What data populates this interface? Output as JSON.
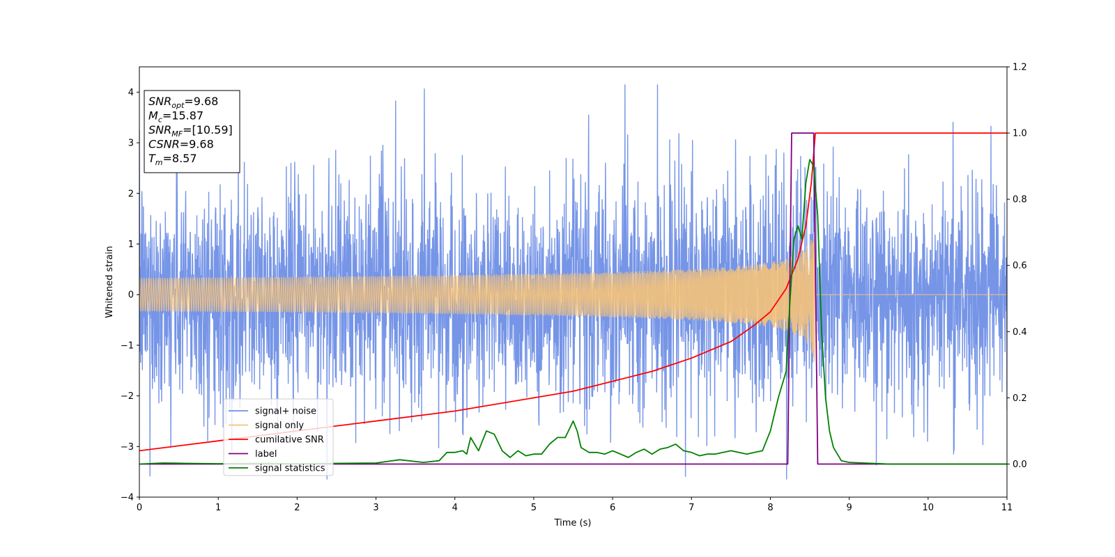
{
  "chart_data": {
    "type": "line",
    "xlabel": "Time (s)",
    "ylabel": "Whitened strain",
    "xlim": [
      0,
      11
    ],
    "ylim": [
      -4,
      4.5
    ],
    "y2lim": [
      -0.1,
      1.2
    ],
    "xticks": [
      "0",
      "1",
      "2",
      "3",
      "4",
      "5",
      "6",
      "7",
      "8",
      "9",
      "10",
      "11"
    ],
    "yticks": [
      "4",
      "3",
      "2",
      "1",
      "0",
      "−1",
      "−2",
      "−3",
      "−4"
    ],
    "y2ticks": [
      "1.2",
      "1.0",
      "0.8",
      "0.6",
      "0.4",
      "0.2",
      "0.0"
    ],
    "grid": false,
    "legend_position": "lower-left",
    "info_box": [
      {
        "sym": "SNR",
        "sub": "opt",
        "val": "=9.68"
      },
      {
        "sym": "M",
        "sub": "c",
        "val": "=15.87"
      },
      {
        "sym": "SNR",
        "sub": "MF",
        "val": "=[10.59]"
      },
      {
        "sym": "CSNR",
        "sub": "",
        "val": "=9.68"
      },
      {
        "sym": "T",
        "sub": "m",
        "val": "=8.57"
      }
    ],
    "series": [
      {
        "name": "signal+ noise",
        "color": "#6f8fe6",
        "axis": "left",
        "kind": "noise",
        "noise_std": 1.05,
        "x_end": 11
      },
      {
        "name": "signal only",
        "color": "#f5c27a",
        "axis": "left",
        "kind": "chirp",
        "merger_time": 8.57,
        "peak_amplitude": 2.7
      },
      {
        "name": "cumilative SNR",
        "color": "#ff0000",
        "axis": "right",
        "x": [
          0,
          1,
          2,
          3,
          4,
          5,
          5.5,
          6,
          6.5,
          7,
          7.5,
          7.8,
          8.0,
          8.2,
          8.35,
          8.45,
          8.52,
          8.57,
          11
        ],
        "y": [
          0.04,
          0.07,
          0.1,
          0.13,
          0.16,
          0.2,
          0.22,
          0.25,
          0.28,
          0.32,
          0.37,
          0.42,
          0.46,
          0.53,
          0.62,
          0.72,
          0.85,
          1.0,
          1.0
        ]
      },
      {
        "name": "label",
        "color": "#800080",
        "axis": "right",
        "x": [
          0,
          8.22,
          8.27,
          8.55,
          8.6,
          11
        ],
        "y": [
          0.0,
          0.0,
          1.0,
          1.0,
          0.0,
          0.0
        ]
      },
      {
        "name": "signal statistics",
        "color": "#008000",
        "axis": "right",
        "x": [
          0,
          0.3,
          0.6,
          1.0,
          1.5,
          2.0,
          2.5,
          3.0,
          3.3,
          3.6,
          3.8,
          3.9,
          4.0,
          4.1,
          4.15,
          4.2,
          4.3,
          4.4,
          4.5,
          4.6,
          4.7,
          4.8,
          4.9,
          5.0,
          5.1,
          5.2,
          5.3,
          5.4,
          5.5,
          5.55,
          5.6,
          5.7,
          5.8,
          5.9,
          6.0,
          6.1,
          6.2,
          6.3,
          6.4,
          6.5,
          6.6,
          6.7,
          6.8,
          6.9,
          7.0,
          7.1,
          7.2,
          7.3,
          7.4,
          7.5,
          7.6,
          7.7,
          7.8,
          7.9,
          8.0,
          8.1,
          8.2,
          8.25,
          8.3,
          8.35,
          8.4,
          8.45,
          8.5,
          8.55,
          8.6,
          8.65,
          8.7,
          8.75,
          8.8,
          8.9,
          9.0,
          9.5,
          10.0,
          11.0
        ],
        "y": [
          0.0,
          0.003,
          0.002,
          0.001,
          0.002,
          0.001,
          0.002,
          0.003,
          0.013,
          0.005,
          0.01,
          0.035,
          0.035,
          0.04,
          0.03,
          0.08,
          0.04,
          0.1,
          0.09,
          0.04,
          0.02,
          0.04,
          0.025,
          0.03,
          0.03,
          0.06,
          0.08,
          0.08,
          0.13,
          0.1,
          0.05,
          0.035,
          0.035,
          0.03,
          0.04,
          0.03,
          0.02,
          0.035,
          0.045,
          0.03,
          0.045,
          0.05,
          0.06,
          0.04,
          0.035,
          0.025,
          0.03,
          0.03,
          0.035,
          0.04,
          0.035,
          0.03,
          0.035,
          0.04,
          0.1,
          0.2,
          0.28,
          0.5,
          0.68,
          0.72,
          0.68,
          0.85,
          0.92,
          0.9,
          0.75,
          0.4,
          0.2,
          0.1,
          0.05,
          0.01,
          0.005,
          0.0,
          0.0,
          0.0
        ]
      }
    ]
  }
}
